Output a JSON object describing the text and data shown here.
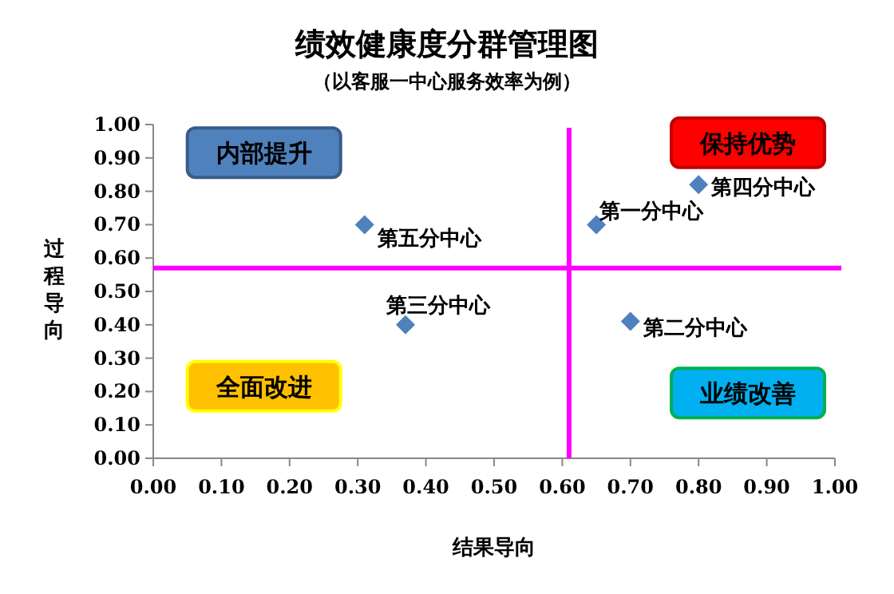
{
  "chart_data": {
    "type": "scatter",
    "title": "绩效健康度分群管理图",
    "subtitle": "（以客服一中心服务效率为例）",
    "xlabel": "结果导向",
    "ylabel": "过程导向",
    "x": [
      0.31,
      0.37,
      0.65,
      0.7,
      0.8
    ],
    "series": [
      {
        "color": "#4f81bd",
        "values": [
          0.7,
          0.4,
          0.7,
          0.41,
          0.82
        ]
      }
    ],
    "marker": "diamond",
    "xlim": [
      0,
      1
    ],
    "ylim": [
      0,
      1
    ],
    "xticks": [
      {
        "value": 0,
        "label": "0.00"
      },
      {
        "value": 0.1,
        "label": "0.10"
      },
      {
        "value": 0.2,
        "label": "0.20"
      },
      {
        "value": 0.3,
        "label": "0.30"
      },
      {
        "value": 0.4,
        "label": "0.40"
      },
      {
        "value": 0.5,
        "label": "0.50"
      },
      {
        "value": 0.6,
        "label": "0.60"
      },
      {
        "value": 0.7,
        "label": "0.70"
      },
      {
        "value": 0.8,
        "label": "0.80"
      },
      {
        "value": 0.9,
        "label": "0.90"
      },
      {
        "value": 1,
        "label": "1.00"
      }
    ],
    "yticks": [
      {
        "value": 0,
        "label": "0.00"
      },
      {
        "value": 0.1,
        "label": "0.10"
      },
      {
        "value": 0.2,
        "label": "0.20"
      },
      {
        "value": 0.3,
        "label": "0.30"
      },
      {
        "value": 0.4,
        "label": "0.40"
      },
      {
        "value": 0.5,
        "label": "0.50"
      },
      {
        "value": 0.6,
        "label": "0.60"
      },
      {
        "value": 0.7,
        "label": "0.70"
      },
      {
        "value": 0.8,
        "label": "0.80"
      },
      {
        "value": 0.9,
        "label": "0.90"
      },
      {
        "value": 1,
        "label": "1.00"
      }
    ],
    "ref_lines": [
      {
        "axis": "x",
        "value": 0.61,
        "color": "#ff00ff"
      },
      {
        "axis": "y",
        "value": 0.57,
        "color": "#ff00ff"
      }
    ],
    "annotations": [
      {
        "text": "第五分中心",
        "x": 0.31,
        "y": 0.7
      },
      {
        "text": "第三分中心",
        "x": 0.37,
        "y": 0.4
      },
      {
        "text": "第一分中心",
        "x": 0.65,
        "y": 0.7
      },
      {
        "text": "第二分中心",
        "x": 0.7,
        "y": 0.41
      },
      {
        "text": "第四分中心",
        "x": 0.8,
        "y": 0.82
      },
      "内部提升",
      "保持优势",
      "全面改进",
      "业绩改善"
    ]
  }
}
